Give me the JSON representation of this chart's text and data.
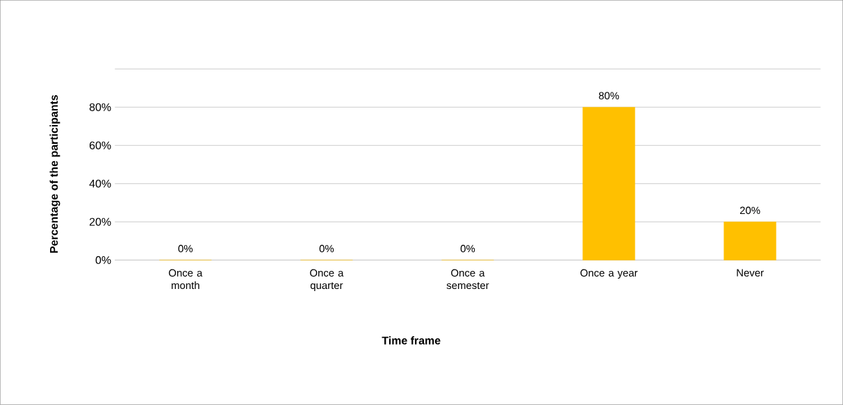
{
  "chart_data": {
    "type": "bar",
    "xlabel": "Time frame",
    "ylabel": "Percentage of the participants",
    "categories": [
      "Once a month",
      "Once a quarter",
      "Once a semester",
      "Once a year",
      "Never"
    ],
    "values": [
      0,
      0,
      0,
      80,
      20
    ],
    "value_labels": [
      "0%",
      "0%",
      "0%",
      "80%",
      "20%"
    ],
    "color": "#ffc000",
    "ylim": [
      0,
      100
    ],
    "yticks": [
      {
        "value": 0,
        "label": "0%"
      },
      {
        "value": 20,
        "label": "20%"
      },
      {
        "value": 40,
        "label": "40%"
      },
      {
        "value": 60,
        "label": "60%"
      },
      {
        "value": 80,
        "label": "80%"
      },
      {
        "value": 100,
        "label": null
      }
    ],
    "grid": "y"
  }
}
